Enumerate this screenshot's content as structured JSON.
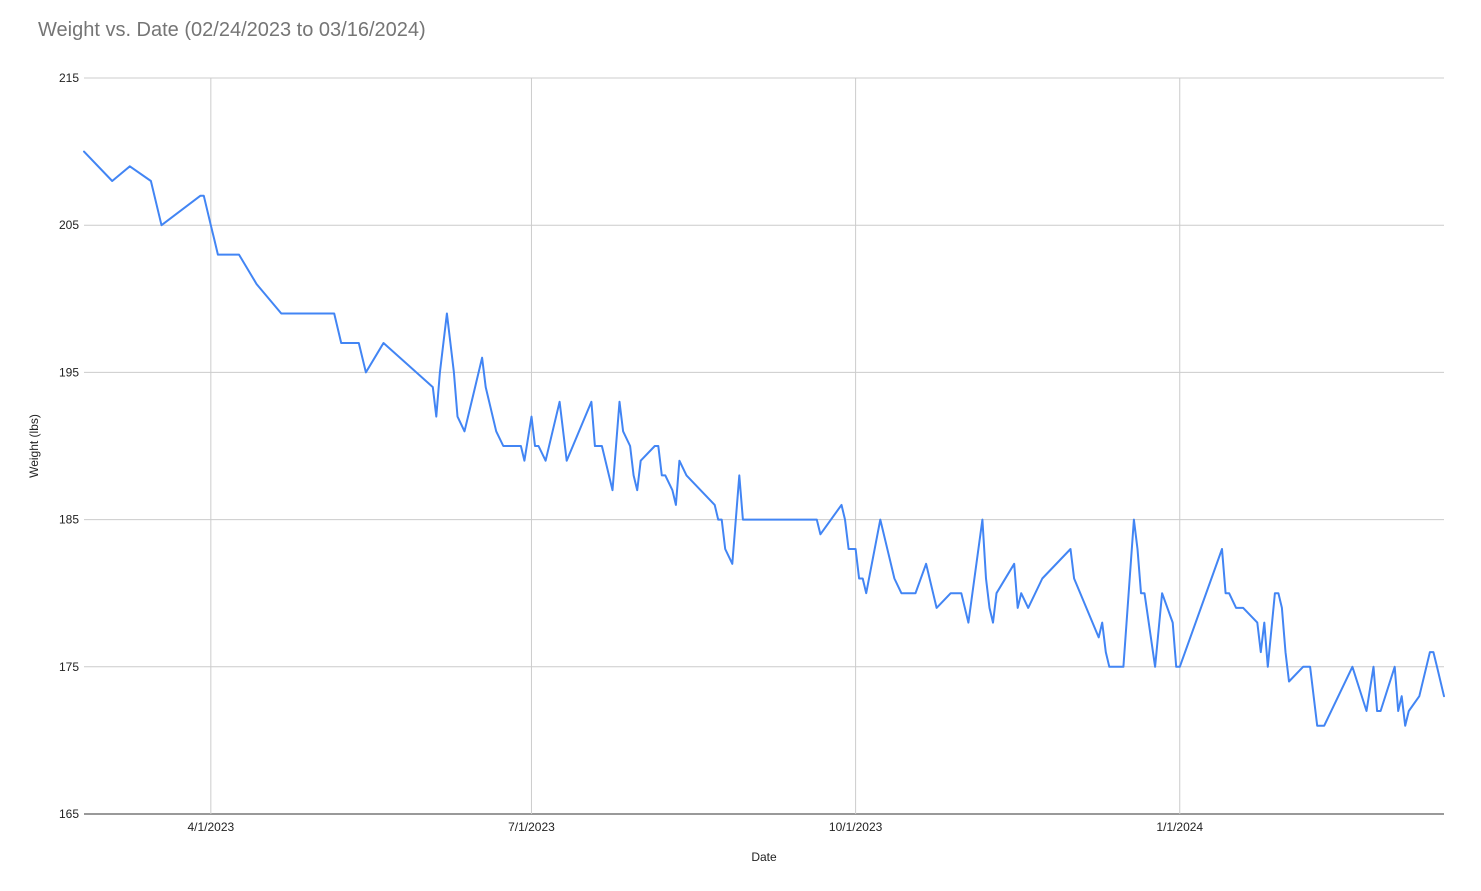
{
  "chart_data": {
    "type": "line",
    "title": "Weight vs. Date (02/24/2023 to 03/16/2024)",
    "xlabel": "Date",
    "ylabel": "Weight (lbs)",
    "xlim": [
      "2023-02-24",
      "2024-03-16"
    ],
    "ylim": [
      165,
      215
    ],
    "y_ticks": [
      165,
      175,
      185,
      195,
      205,
      215
    ],
    "x_ticks": [
      {
        "date": "2023-04-01",
        "label": "4/1/2023"
      },
      {
        "date": "2023-07-01",
        "label": "7/1/2023"
      },
      {
        "date": "2023-10-01",
        "label": "10/1/2023"
      },
      {
        "date": "2024-01-01",
        "label": "1/1/2024"
      }
    ],
    "grid": true,
    "legend": "none",
    "series_color": "#4285f4",
    "series": [
      {
        "points": [
          [
            "2023-02-24",
            210
          ],
          [
            "2023-03-04",
            208
          ],
          [
            "2023-03-09",
            209
          ],
          [
            "2023-03-15",
            208
          ],
          [
            "2023-03-18",
            205
          ],
          [
            "2023-03-29",
            207
          ],
          [
            "2023-03-30",
            207
          ],
          [
            "2023-04-01",
            205
          ],
          [
            "2023-04-02",
            204
          ],
          [
            "2023-04-03",
            203
          ],
          [
            "2023-04-09",
            203
          ],
          [
            "2023-04-14",
            201
          ],
          [
            "2023-04-21",
            199
          ],
          [
            "2023-05-06",
            199
          ],
          [
            "2023-05-08",
            197
          ],
          [
            "2023-05-13",
            197
          ],
          [
            "2023-05-15",
            195
          ],
          [
            "2023-05-20",
            197
          ],
          [
            "2023-06-03",
            194
          ],
          [
            "2023-06-04",
            192
          ],
          [
            "2023-06-05",
            195
          ],
          [
            "2023-06-07",
            199
          ],
          [
            "2023-06-09",
            195
          ],
          [
            "2023-06-10",
            192
          ],
          [
            "2023-06-12",
            191
          ],
          [
            "2023-06-15",
            194
          ],
          [
            "2023-06-17",
            196
          ],
          [
            "2023-06-18",
            194
          ],
          [
            "2023-06-21",
            191
          ],
          [
            "2023-06-23",
            190
          ],
          [
            "2023-06-28",
            190
          ],
          [
            "2023-06-29",
            189
          ],
          [
            "2023-07-01",
            192
          ],
          [
            "2023-07-02",
            190
          ],
          [
            "2023-07-03",
            190
          ],
          [
            "2023-07-05",
            189
          ],
          [
            "2023-07-09",
            193
          ],
          [
            "2023-07-11",
            189
          ],
          [
            "2023-07-18",
            193
          ],
          [
            "2023-07-19",
            190
          ],
          [
            "2023-07-21",
            190
          ],
          [
            "2023-07-24",
            187
          ],
          [
            "2023-07-26",
            193
          ],
          [
            "2023-07-27",
            191
          ],
          [
            "2023-07-29",
            190
          ],
          [
            "2023-07-30",
            188
          ],
          [
            "2023-07-31",
            187
          ],
          [
            "2023-08-01",
            189
          ],
          [
            "2023-08-05",
            190
          ],
          [
            "2023-08-06",
            190
          ],
          [
            "2023-08-07",
            188
          ],
          [
            "2023-08-08",
            188
          ],
          [
            "2023-08-10",
            187
          ],
          [
            "2023-08-11",
            186
          ],
          [
            "2023-08-12",
            189
          ],
          [
            "2023-08-14",
            188
          ],
          [
            "2023-08-22",
            186
          ],
          [
            "2023-08-23",
            185
          ],
          [
            "2023-08-24",
            185
          ],
          [
            "2023-08-25",
            183
          ],
          [
            "2023-08-27",
            182
          ],
          [
            "2023-08-29",
            188
          ],
          [
            "2023-08-30",
            185
          ],
          [
            "2023-09-20",
            185
          ],
          [
            "2023-09-21",
            184
          ],
          [
            "2023-09-27",
            186
          ],
          [
            "2023-09-28",
            185
          ],
          [
            "2023-09-29",
            183
          ],
          [
            "2023-10-01",
            183
          ],
          [
            "2023-10-02",
            181
          ],
          [
            "2023-10-03",
            181
          ],
          [
            "2023-10-04",
            180
          ],
          [
            "2023-10-08",
            185
          ],
          [
            "2023-10-12",
            181
          ],
          [
            "2023-10-14",
            180
          ],
          [
            "2023-10-18",
            180
          ],
          [
            "2023-10-21",
            182
          ],
          [
            "2023-10-22",
            181
          ],
          [
            "2023-10-23",
            180
          ],
          [
            "2023-10-24",
            179
          ],
          [
            "2023-10-28",
            180
          ],
          [
            "2023-10-31",
            180
          ],
          [
            "2023-11-02",
            178
          ],
          [
            "2023-11-06",
            185
          ],
          [
            "2023-11-07",
            181
          ],
          [
            "2023-11-08",
            179
          ],
          [
            "2023-11-09",
            178
          ],
          [
            "2023-11-10",
            180
          ],
          [
            "2023-11-15",
            182
          ],
          [
            "2023-11-16",
            179
          ],
          [
            "2023-11-17",
            180
          ],
          [
            "2023-11-19",
            179
          ],
          [
            "2023-11-23",
            181
          ],
          [
            "2023-12-01",
            183
          ],
          [
            "2023-12-02",
            181
          ],
          [
            "2023-12-09",
            177
          ],
          [
            "2023-12-10",
            178
          ],
          [
            "2023-12-11",
            176
          ],
          [
            "2023-12-12",
            175
          ],
          [
            "2023-12-16",
            175
          ],
          [
            "2023-12-19",
            185
          ],
          [
            "2023-12-20",
            183
          ],
          [
            "2023-12-21",
            180
          ],
          [
            "2023-12-22",
            180
          ],
          [
            "2023-12-25",
            175
          ],
          [
            "2023-12-27",
            180
          ],
          [
            "2023-12-30",
            178
          ],
          [
            "2023-12-31",
            175
          ],
          [
            "2024-01-01",
            175
          ],
          [
            "2024-01-13",
            183
          ],
          [
            "2024-01-14",
            180
          ],
          [
            "2024-01-15",
            180
          ],
          [
            "2024-01-17",
            179
          ],
          [
            "2024-01-19",
            179
          ],
          [
            "2024-01-23",
            178
          ],
          [
            "2024-01-24",
            176
          ],
          [
            "2024-01-25",
            178
          ],
          [
            "2024-01-26",
            175
          ],
          [
            "2024-01-28",
            180
          ],
          [
            "2024-01-29",
            180
          ],
          [
            "2024-01-30",
            179
          ],
          [
            "2024-01-31",
            176
          ],
          [
            "2024-02-01",
            174
          ],
          [
            "2024-02-05",
            175
          ],
          [
            "2024-02-07",
            175
          ],
          [
            "2024-02-09",
            171
          ],
          [
            "2024-02-11",
            171
          ],
          [
            "2024-02-19",
            175
          ],
          [
            "2024-02-23",
            172
          ],
          [
            "2024-02-25",
            175
          ],
          [
            "2024-02-26",
            172
          ],
          [
            "2024-02-27",
            172
          ],
          [
            "2024-03-02",
            175
          ],
          [
            "2024-03-03",
            172
          ],
          [
            "2024-03-04",
            173
          ],
          [
            "2024-03-05",
            171
          ],
          [
            "2024-03-06",
            172
          ],
          [
            "2024-03-09",
            173
          ],
          [
            "2024-03-12",
            176
          ],
          [
            "2024-03-13",
            176
          ],
          [
            "2024-03-14",
            175
          ],
          [
            "2024-03-16",
            173
          ]
        ]
      }
    ]
  }
}
